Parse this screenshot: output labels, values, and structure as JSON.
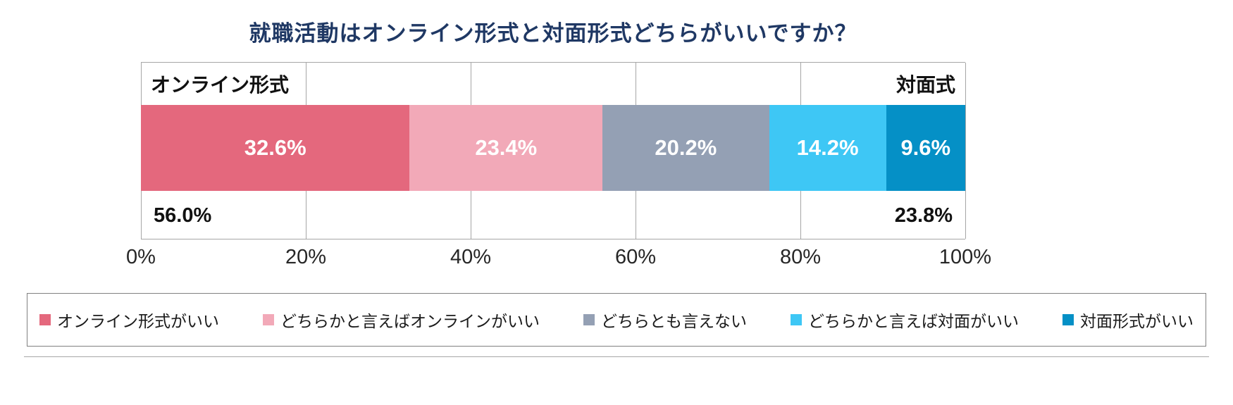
{
  "title": "就職活動はオンライン形式と対面形式どちらがいいですか？",
  "axis": {
    "left_header": "オンライン形式",
    "right_header": "対面式",
    "left_total": "56.0%",
    "right_total": "23.8%"
  },
  "chart_data": {
    "type": "bar",
    "subtype": "horizontal-stacked",
    "title": "就職活動はオンライン形式と対面形式どちらがいいですか？",
    "categories": [
      "オンライン形式がいい",
      "どちらかと言えばオンラインがいい",
      "どちらとも言えない",
      "どちらかと言えば対面がいい",
      "対面形式がいい"
    ],
    "values": [
      32.6,
      23.4,
      20.2,
      14.2,
      9.6
    ],
    "value_labels": [
      "32.6%",
      "23.4%",
      "20.2%",
      "14.2%",
      "9.6%"
    ],
    "colors": [
      "#E4687D",
      "#F2A9B8",
      "#94A0B4",
      "#3EC7F5",
      "#0590C6"
    ],
    "xlim": [
      0,
      100
    ],
    "x_ticks": [
      "0%",
      "20%",
      "40%",
      "60%",
      "80%",
      "100%"
    ],
    "grid": true,
    "legend_position": "bottom",
    "group_totals": {
      "online_side_label": "オンライン形式",
      "online_side_total": "56.0%",
      "inperson_side_label": "対面式",
      "inperson_side_total": "23.8%"
    }
  },
  "legend": {
    "items": [
      {
        "label": "オンライン形式がいい",
        "color": "#E4687D"
      },
      {
        "label": "どちらかと言えばオンラインがいい",
        "color": "#F2A9B8"
      },
      {
        "label": "どちらとも言えない",
        "color": "#94A0B4"
      },
      {
        "label": "どちらかと言えば対面がいい",
        "color": "#3EC7F5"
      },
      {
        "label": "対面形式がいい",
        "color": "#0590C6"
      }
    ]
  },
  "colors": {
    "title": "#1F3864",
    "gridline": "#a6a6a6",
    "tick_text": "#262626"
  }
}
